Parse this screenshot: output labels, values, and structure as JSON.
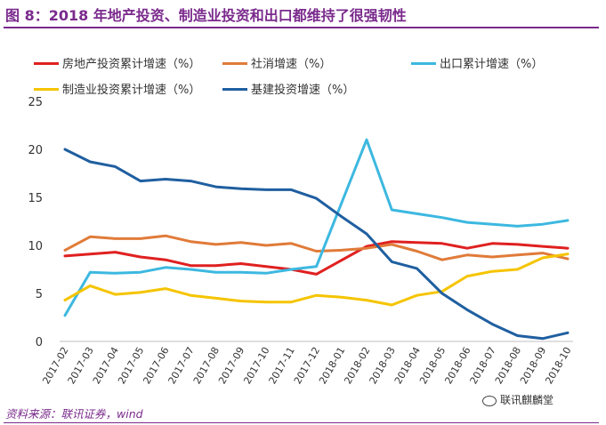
{
  "header": {
    "title": "图 8：2018 年地产投资、制造业投资和出口都维持了很强韧性"
  },
  "footer": {
    "source": "资料来源：联讯证券，wind",
    "watermark": "联讯麒麟堂"
  },
  "chart_data": {
    "type": "line",
    "title": "",
    "xlabel": "",
    "ylabel": "",
    "ylim": [
      0,
      25
    ],
    "yticks": [
      0,
      5,
      10,
      15,
      20,
      25
    ],
    "grid": false,
    "legend_position": "top",
    "categories": [
      "2017-02",
      "2017-03",
      "2017-04",
      "2017-05",
      "2017-06",
      "2017-07",
      "2017-08",
      "2017-09",
      "2017-10",
      "2017-11",
      "2017-12",
      "2018-01",
      "2018-02",
      "2018-03",
      "2018-04",
      "2018-05",
      "2018-06",
      "2018-07",
      "2018-08",
      "2018-09",
      "2018-10"
    ],
    "series": [
      {
        "name": "房地产投资累计增速（%）",
        "color": "#e02020",
        "values": [
          8.9,
          9.1,
          9.3,
          8.8,
          8.5,
          7.9,
          7.9,
          8.1,
          7.8,
          7.5,
          7.0,
          null,
          9.9,
          10.4,
          10.3,
          10.2,
          9.7,
          10.2,
          10.1,
          9.9,
          9.7
        ]
      },
      {
        "name": "社消增速（%）",
        "color": "#e07b39",
        "values": [
          9.5,
          10.9,
          10.7,
          10.7,
          11.0,
          10.4,
          10.1,
          10.3,
          10.0,
          10.2,
          9.4,
          9.5,
          9.7,
          10.1,
          9.4,
          8.5,
          9.0,
          8.8,
          9.0,
          9.2,
          8.6
        ]
      },
      {
        "name": "出口累计增速（%）",
        "color": "#3cb8e0",
        "values": [
          2.7,
          7.2,
          7.1,
          7.2,
          7.7,
          7.5,
          7.2,
          7.2,
          7.1,
          7.5,
          7.8,
          null,
          21.0,
          13.7,
          13.3,
          12.9,
          12.4,
          12.2,
          12.0,
          12.2,
          12.6
        ]
      },
      {
        "name": "制造业投资累计增速（%）",
        "color": "#f5c400",
        "values": [
          4.3,
          5.8,
          4.9,
          5.1,
          5.5,
          4.8,
          4.5,
          4.2,
          4.1,
          4.1,
          4.8,
          4.6,
          4.3,
          3.8,
          4.8,
          5.2,
          6.8,
          7.3,
          7.5,
          8.7,
          9.1
        ]
      },
      {
        "name": "基建投资增速（%）",
        "color": "#1f5fa0",
        "values": [
          20.0,
          18.7,
          18.2,
          16.7,
          16.9,
          16.7,
          16.1,
          15.9,
          15.8,
          15.8,
          14.9,
          13.0,
          11.2,
          8.3,
          7.6,
          5.0,
          3.3,
          1.8,
          0.6,
          0.3,
          0.9
        ]
      }
    ]
  }
}
